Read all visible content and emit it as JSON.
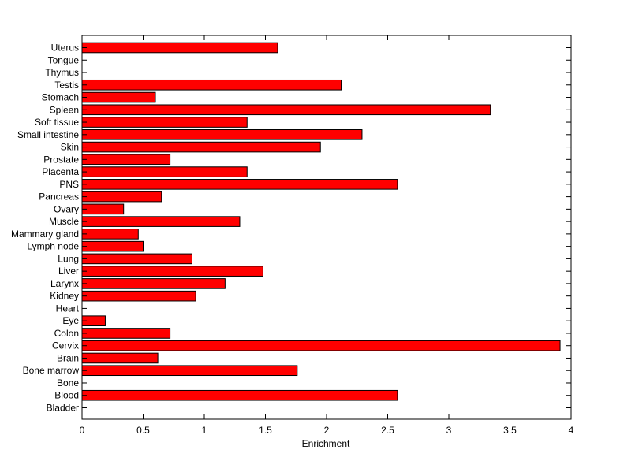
{
  "chart_data": {
    "type": "bar",
    "orientation": "horizontal",
    "title": "",
    "xlabel": "Enrichment",
    "ylabel": "",
    "xlim": [
      0,
      4
    ],
    "x_ticks": [
      0,
      0.5,
      1,
      1.5,
      2,
      2.5,
      3,
      3.5,
      4
    ],
    "x_tick_labels": [
      "0",
      "0.5",
      "1",
      "1.5",
      "2",
      "2.5",
      "3",
      "3.5",
      "4"
    ],
    "grid": false,
    "legend": "none",
    "bar_color": "#ff0000",
    "bar_edge_color": "#000000",
    "categories": [
      "Bladder",
      "Blood",
      "Bone",
      "Bone marrow",
      "Brain",
      "Cervix",
      "Colon",
      "Eye",
      "Heart",
      "Kidney",
      "Larynx",
      "Liver",
      "Lung",
      "Lymph node",
      "Mammary gland",
      "Muscle",
      "Ovary",
      "Pancreas",
      "PNS",
      "Placenta",
      "Prostate",
      "Skin",
      "Small intestine",
      "Soft tissue",
      "Spleen",
      "Stomach",
      "Testis",
      "Thymus",
      "Tongue",
      "Uterus"
    ],
    "values": [
      0,
      2.58,
      0,
      1.76,
      0.62,
      3.91,
      0.72,
      0.19,
      0,
      0.93,
      1.17,
      1.48,
      0.9,
      0.5,
      0.46,
      1.29,
      0.34,
      0.65,
      2.58,
      1.35,
      0.72,
      1.95,
      2.29,
      1.35,
      3.34,
      0.6,
      2.12,
      0,
      0,
      1.6
    ]
  }
}
